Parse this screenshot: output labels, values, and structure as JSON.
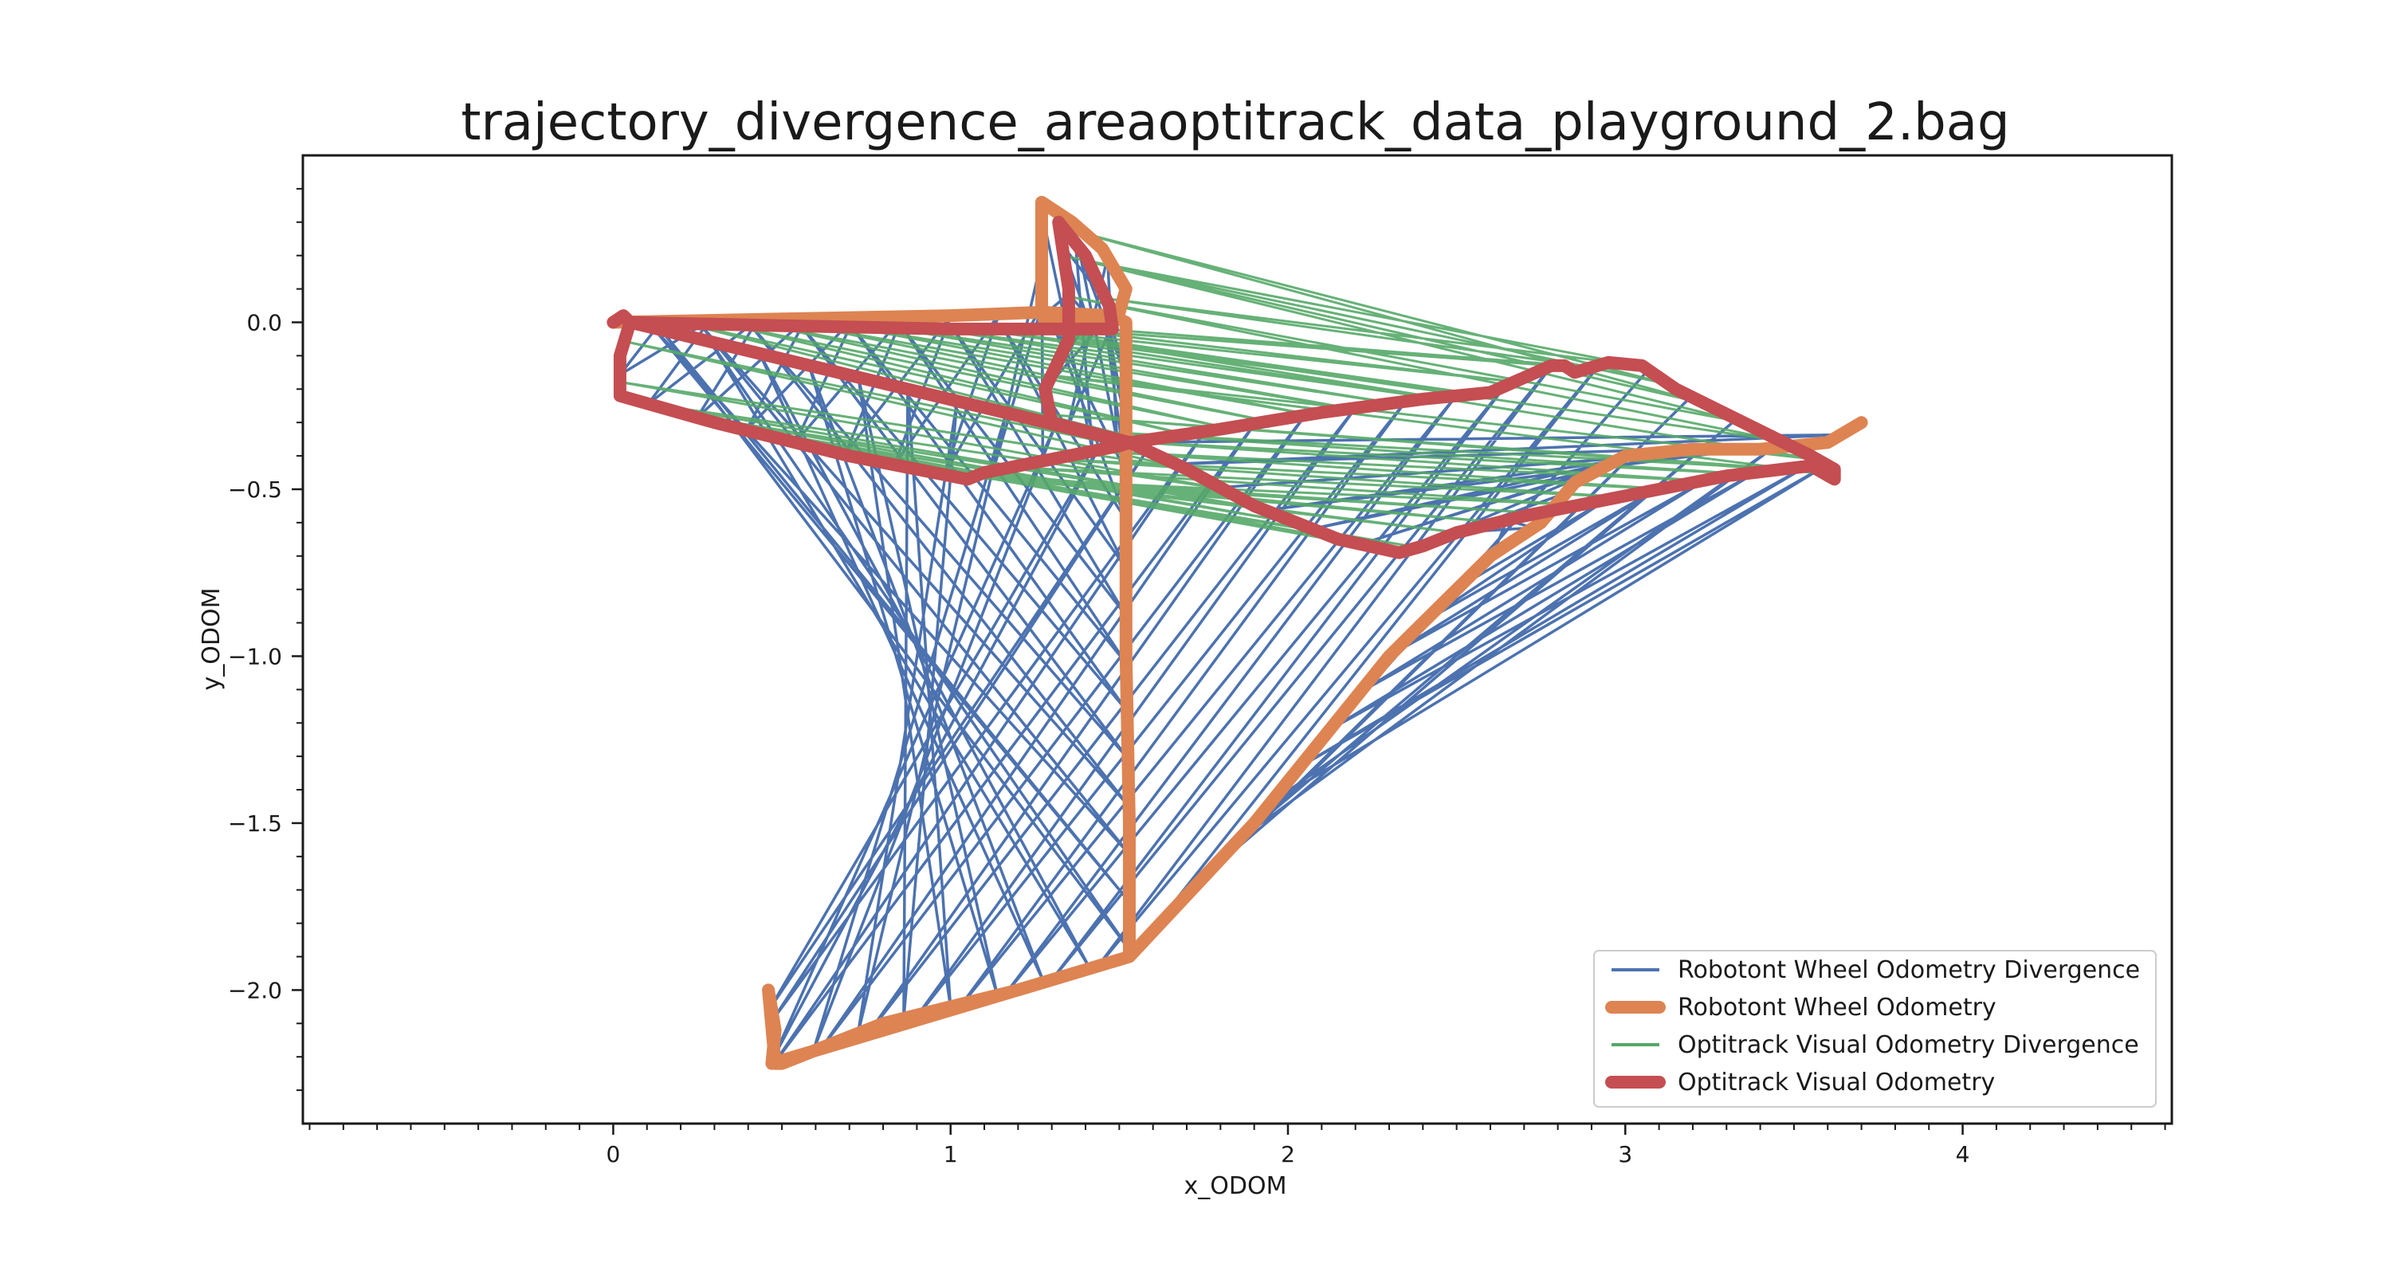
{
  "chart_data": {
    "type": "line",
    "title": "trajectory_divergence_areaoptitrack_data_playground_2.bag",
    "xlabel": "x_ODOM",
    "ylabel": "y_ODOM",
    "xlim": [
      -0.92,
      4.62
    ],
    "ylim": [
      -2.4,
      0.5
    ],
    "x_ticks": [
      0,
      1,
      2,
      3,
      4
    ],
    "x_tick_labels": [
      "0",
      "1",
      "2",
      "3",
      "4"
    ],
    "y_ticks": [
      0.0,
      -0.5,
      -1.0,
      -1.5,
      -2.0
    ],
    "y_tick_labels": [
      "0.0",
      "−0.5",
      "−1.0",
      "−1.5",
      "−2.0"
    ],
    "minor_tick_step": 0.1,
    "grid": false,
    "legend_position": "lower-right",
    "colors": {
      "wheel_divergence": "#4c72b0",
      "wheel_odometry": "#dd8452",
      "optitrack_divergence": "#55a868",
      "optitrack_odometry": "#c44e52"
    },
    "series": [
      {
        "name": "Robotont Wheel Odometry Divergence",
        "kind": "divergence",
        "color": "#4c72b0",
        "from": "Robotont Wheel Odometry",
        "to": "Optitrack Visual Odometry"
      },
      {
        "name": "Robotont Wheel Odometry",
        "kind": "path",
        "color": "#dd8452",
        "points": [
          [
            0.0,
            0.0
          ],
          [
            0.5,
            0.01
          ],
          [
            1.0,
            0.02
          ],
          [
            1.27,
            0.03
          ],
          [
            1.27,
            0.36
          ],
          [
            1.36,
            0.3
          ],
          [
            1.45,
            0.22
          ],
          [
            1.52,
            0.1
          ],
          [
            1.5,
            0.03
          ],
          [
            1.42,
            0.0
          ],
          [
            1.35,
            -0.01
          ],
          [
            1.28,
            0.0
          ],
          [
            1.27,
            0.03
          ],
          [
            1.48,
            0.02
          ],
          [
            1.52,
            0.0
          ],
          [
            1.52,
            -0.5
          ],
          [
            1.52,
            -1.0
          ],
          [
            1.53,
            -1.5
          ],
          [
            1.53,
            -1.9
          ],
          [
            1.2,
            -2.0
          ],
          [
            0.8,
            -2.1
          ],
          [
            0.5,
            -2.22
          ],
          [
            0.48,
            -2.22
          ],
          [
            0.46,
            -2.0
          ],
          [
            0.48,
            -2.12
          ],
          [
            0.47,
            -2.22
          ],
          [
            1.53,
            -1.9
          ],
          [
            1.9,
            -1.5
          ],
          [
            2.3,
            -1.0
          ],
          [
            2.6,
            -0.7
          ],
          [
            2.75,
            -0.6
          ],
          [
            2.85,
            -0.48
          ],
          [
            3.0,
            -0.4
          ],
          [
            3.2,
            -0.38
          ],
          [
            3.4,
            -0.38
          ],
          [
            3.6,
            -0.36
          ],
          [
            3.7,
            -0.3
          ]
        ]
      },
      {
        "name": "Optitrack Visual Odometry Divergence",
        "kind": "divergence",
        "color": "#55a868",
        "from": "Robotont Wheel Odometry",
        "to": "Optitrack Visual Odometry"
      },
      {
        "name": "Optitrack Visual Odometry",
        "kind": "path",
        "color": "#c44e52",
        "points": [
          [
            0.0,
            0.0
          ],
          [
            0.03,
            0.02
          ],
          [
            0.05,
            0.0
          ],
          [
            0.02,
            -0.1
          ],
          [
            0.02,
            -0.2
          ],
          [
            0.02,
            -0.22
          ],
          [
            0.3,
            -0.3
          ],
          [
            0.7,
            -0.4
          ],
          [
            1.05,
            -0.47
          ],
          [
            1.1,
            -0.45
          ],
          [
            1.5,
            -0.37
          ],
          [
            1.53,
            -0.36
          ],
          [
            1.3,
            -0.3
          ],
          [
            1.28,
            -0.2
          ],
          [
            1.35,
            -0.05
          ],
          [
            1.35,
            0.1
          ],
          [
            1.32,
            0.3
          ],
          [
            1.4,
            0.2
          ],
          [
            1.47,
            0.05
          ],
          [
            1.48,
            -0.02
          ],
          [
            1.3,
            -0.02
          ],
          [
            1.0,
            -0.02
          ],
          [
            0.5,
            -0.01
          ],
          [
            0.05,
            0.0
          ],
          [
            1.53,
            -0.36
          ],
          [
            1.8,
            -0.32
          ],
          [
            2.1,
            -0.27
          ],
          [
            2.4,
            -0.23
          ],
          [
            2.6,
            -0.21
          ],
          [
            2.78,
            -0.13
          ],
          [
            2.82,
            -0.13
          ],
          [
            2.85,
            -0.15
          ],
          [
            2.95,
            -0.12
          ],
          [
            3.05,
            -0.13
          ],
          [
            3.15,
            -0.2
          ],
          [
            3.35,
            -0.3
          ],
          [
            3.55,
            -0.4
          ],
          [
            3.62,
            -0.44
          ],
          [
            3.62,
            -0.47
          ],
          [
            3.55,
            -0.43
          ],
          [
            3.3,
            -0.46
          ],
          [
            3.0,
            -0.52
          ],
          [
            2.7,
            -0.58
          ],
          [
            2.5,
            -0.63
          ],
          [
            2.4,
            -0.67
          ],
          [
            2.33,
            -0.69
          ],
          [
            2.15,
            -0.65
          ],
          [
            1.9,
            -0.55
          ],
          [
            1.7,
            -0.44
          ],
          [
            1.53,
            -0.36
          ]
        ]
      }
    ]
  }
}
